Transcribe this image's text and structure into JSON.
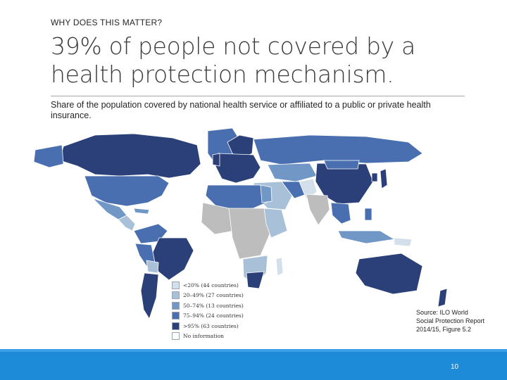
{
  "slide": {
    "kicker": "WHY DOES THIS MATTER?",
    "title": "39% of people not covered by a health protection mechanism.",
    "subtitle": "Share of the population covered by national health service or affiliated to a public or private health insurance.",
    "source": "Source: ILO World Social Protection Report 2014/15, Figure 5.2",
    "page_number": "10"
  },
  "legend": [
    {
      "label": "<20% (44 countries)",
      "color": "#d3dfea"
    },
    {
      "label": "20–49% (27 countries)",
      "color": "#a9c1d8"
    },
    {
      "label": "50–74% (13 countries)",
      "color": "#7097c6"
    },
    {
      "label": "75–94% (24 countries)",
      "color": "#4a6fb0"
    },
    {
      "label": ">95% (63 countries)",
      "color": "#2b3f79"
    },
    {
      "label": "No information",
      "color": "#ffffff"
    }
  ],
  "colors": {
    "footer": "#1d8bd8",
    "no_information_map": "#bdbdbd"
  }
}
